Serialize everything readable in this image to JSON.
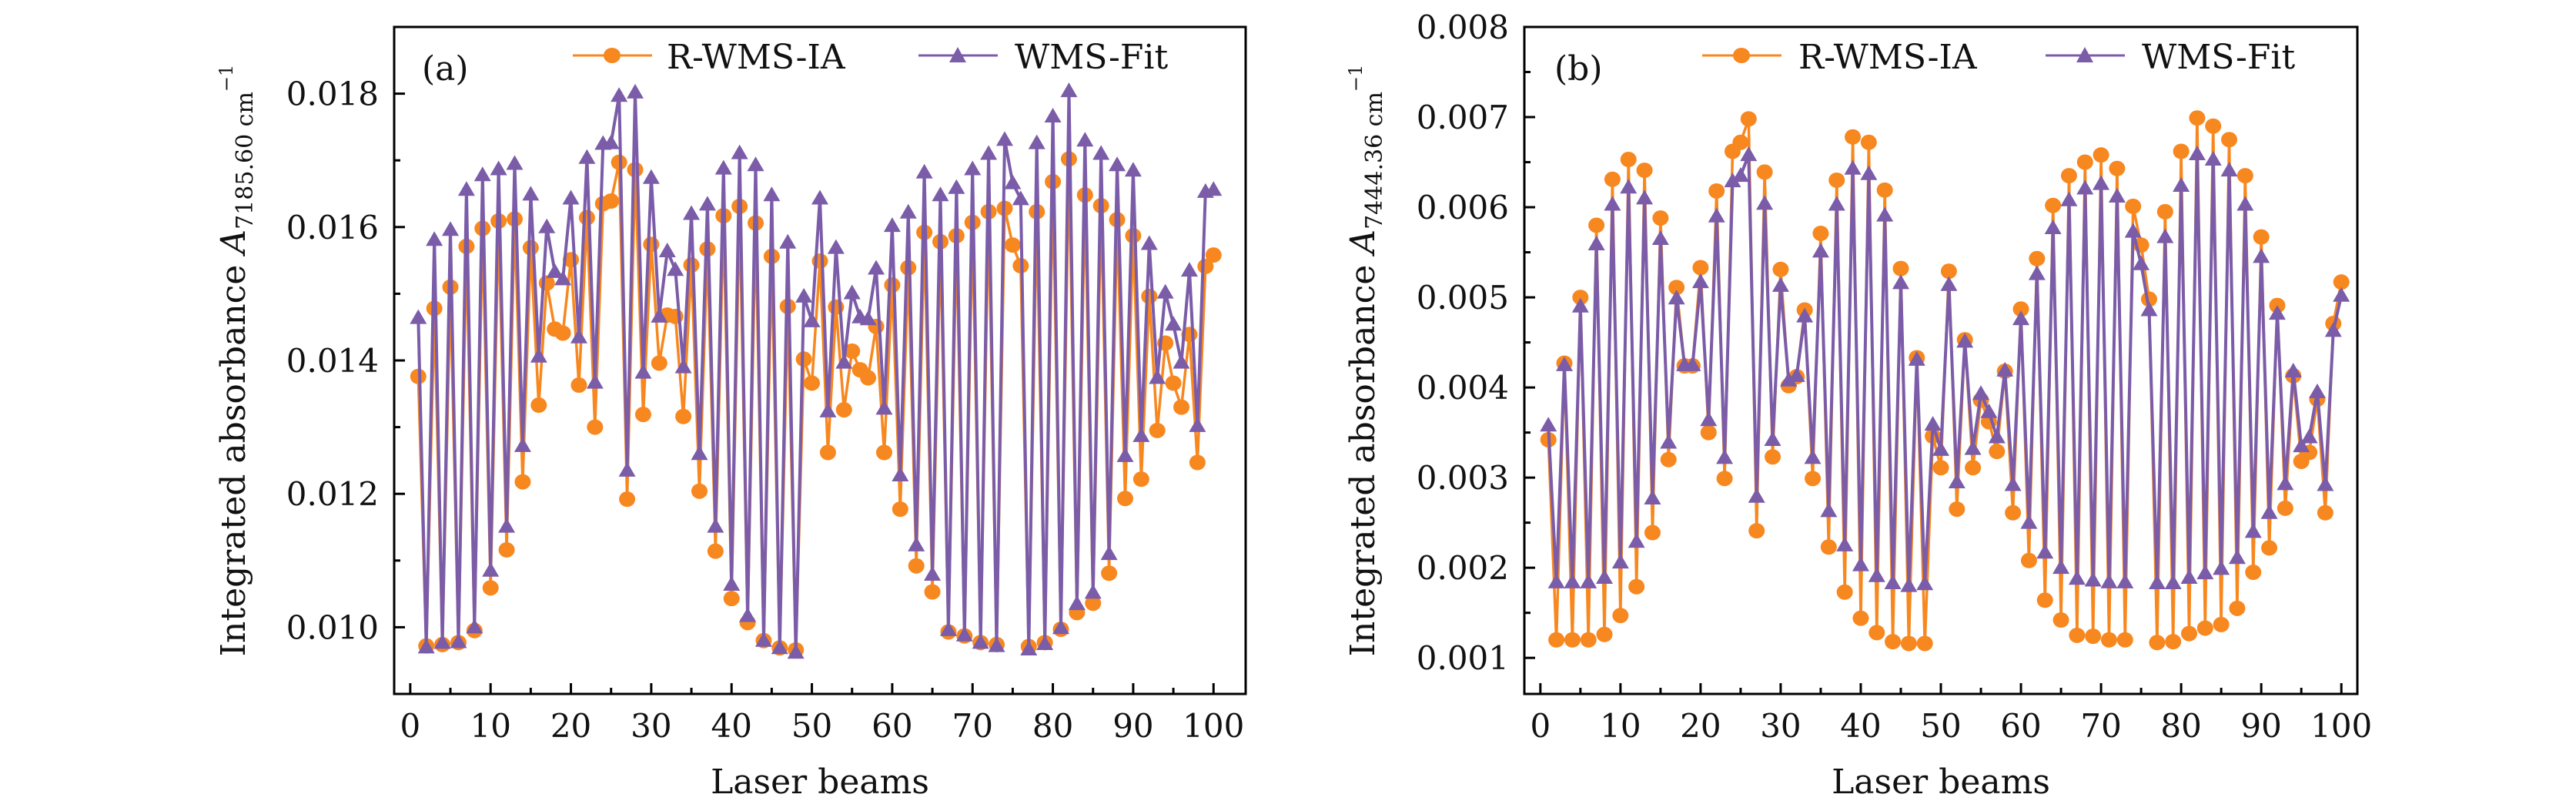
{
  "colors": {
    "r_wms_ia": "#F7871F",
    "wms_fit": "#7B5CA8",
    "axis": "#000000"
  },
  "chart_data": [
    {
      "type": "line",
      "panel_label": "(a)",
      "xlabel": "Laser beams",
      "ylabel": {
        "text": "Integrated absorbance ",
        "symbol": "A",
        "subscript": "7185.60 cm",
        "superscript": "−1"
      },
      "xlim": [
        -2,
        104
      ],
      "ylim": [
        0.009,
        0.019
      ],
      "xticks": [
        0,
        10,
        20,
        30,
        40,
        50,
        60,
        70,
        80,
        90,
        100
      ],
      "yticks": [
        0.01,
        0.012,
        0.014,
        0.016,
        0.018
      ],
      "ytick_labels": [
        "0.010",
        "0.012",
        "0.014",
        "0.016",
        "0.018"
      ],
      "grid": false,
      "legend_placement": "top",
      "x": [
        1,
        2,
        3,
        4,
        5,
        6,
        7,
        8,
        9,
        10,
        11,
        12,
        13,
        14,
        15,
        16,
        17,
        18,
        19,
        20,
        21,
        22,
        23,
        24,
        25,
        26,
        27,
        28,
        29,
        30,
        31,
        32,
        33,
        34,
        35,
        36,
        37,
        38,
        39,
        40,
        41,
        42,
        43,
        44,
        45,
        46,
        47,
        48,
        49,
        50,
        51,
        52,
        53,
        54,
        55,
        56,
        57,
        58,
        59,
        60,
        61,
        62,
        63,
        64,
        65,
        66,
        67,
        68,
        69,
        70,
        71,
        72,
        73,
        74,
        75,
        76,
        77,
        78,
        79,
        80,
        81,
        82,
        83,
        84,
        85,
        86,
        87,
        88,
        89,
        90,
        91,
        92,
        93,
        94,
        95,
        96,
        97,
        98,
        99,
        100
      ],
      "series": [
        {
          "name": "R-WMS-IA",
          "marker": "circle",
          "values": [
            0.01376,
            0.00972,
            0.01478,
            0.00974,
            0.0151,
            0.00977,
            0.01571,
            0.00995,
            0.01598,
            0.01059,
            0.01609,
            0.01116,
            0.01612,
            0.01218,
            0.01569,
            0.01333,
            0.01516,
            0.01447,
            0.01441,
            0.01551,
            0.01363,
            0.01614,
            0.013,
            0.01635,
            0.01639,
            0.01697,
            0.01192,
            0.01686,
            0.01319,
            0.01574,
            0.01396,
            0.01468,
            0.01466,
            0.01316,
            0.01543,
            0.01204,
            0.01567,
            0.01114,
            0.01617,
            0.01043,
            0.01631,
            0.01007,
            0.01606,
            0.0098,
            0.01556,
            0.00969,
            0.01481,
            0.00966,
            0.01402,
            0.01366,
            0.01549,
            0.01262,
            0.0148,
            0.01326,
            0.01414,
            0.01386,
            0.01374,
            0.01451,
            0.01262,
            0.01513,
            0.01177,
            0.01539,
            0.01092,
            0.01592,
            0.01053,
            0.01578,
            0.00993,
            0.01587,
            0.00987,
            0.01607,
            0.00977,
            0.01623,
            0.00974,
            0.01628,
            0.01573,
            0.01542,
            0.00971,
            0.01623,
            0.00977,
            0.01668,
            0.00997,
            0.01702,
            0.01022,
            0.01648,
            0.01036,
            0.01632,
            0.01081,
            0.01611,
            0.01193,
            0.01587,
            0.01222,
            0.01496,
            0.01295,
            0.01426,
            0.01366,
            0.0133,
            0.01439,
            0.01247,
            0.01541,
            0.01558
          ]
        },
        {
          "name": "WMS-Fit",
          "marker": "triangle",
          "values": [
            0.01464,
            0.0097,
            0.01581,
            0.00977,
            0.01596,
            0.00978,
            0.01656,
            0.01,
            0.01678,
            0.01085,
            0.01687,
            0.01151,
            0.01695,
            0.01272,
            0.01649,
            0.01406,
            0.016,
            0.01533,
            0.01522,
            0.01643,
            0.01435,
            0.01704,
            0.01367,
            0.01725,
            0.01726,
            0.01797,
            0.01235,
            0.01802,
            0.01382,
            0.01674,
            0.01466,
            0.01564,
            0.01536,
            0.0139,
            0.0162,
            0.0126,
            0.01634,
            0.01151,
            0.01688,
            0.01064,
            0.01711,
            0.01017,
            0.01693,
            0.0098,
            0.01648,
            0.00969,
            0.01577,
            0.00962,
            0.01496,
            0.01459,
            0.01643,
            0.01324,
            0.01569,
            0.01397,
            0.01501,
            0.01465,
            0.01462,
            0.01538,
            0.01328,
            0.01602,
            0.01228,
            0.01622,
            0.01123,
            0.01682,
            0.01079,
            0.01648,
            0.00996,
            0.01659,
            0.00988,
            0.01687,
            0.00977,
            0.0171,
            0.00972,
            0.01731,
            0.01666,
            0.01642,
            0.00967,
            0.01726,
            0.00975,
            0.01766,
            0.00999,
            0.01804,
            0.01035,
            0.0173,
            0.01052,
            0.0171,
            0.0111,
            0.01693,
            0.01257,
            0.01685,
            0.01287,
            0.01575,
            0.01374,
            0.01502,
            0.01454,
            0.01397,
            0.01535,
            0.01302,
            0.01653,
            0.01656
          ]
        }
      ]
    },
    {
      "type": "line",
      "panel_label": "(b)",
      "xlabel": "Laser beams",
      "ylabel": {
        "text": "Integrated absorbance ",
        "symbol": "A",
        "subscript": "7444.36 cm",
        "superscript": "−1"
      },
      "xlim": [
        -2,
        102
      ],
      "ylim": [
        0.0006,
        0.008
      ],
      "xticks": [
        0,
        10,
        20,
        30,
        40,
        50,
        60,
        70,
        80,
        90,
        100
      ],
      "yticks": [
        0.001,
        0.002,
        0.003,
        0.004,
        0.005,
        0.006,
        0.007,
        0.008
      ],
      "ytick_labels": [
        "0.001",
        "0.002",
        "0.003",
        "0.004",
        "0.005",
        "0.006",
        "0.007",
        "0.008"
      ],
      "grid": false,
      "legend_placement": "top",
      "x": [
        1,
        2,
        3,
        4,
        5,
        6,
        7,
        8,
        9,
        10,
        11,
        12,
        13,
        14,
        15,
        16,
        17,
        18,
        19,
        20,
        21,
        22,
        23,
        24,
        25,
        26,
        27,
        28,
        29,
        30,
        31,
        32,
        33,
        34,
        35,
        36,
        37,
        38,
        39,
        40,
        41,
        42,
        43,
        44,
        45,
        46,
        47,
        48,
        49,
        50,
        51,
        52,
        53,
        54,
        55,
        56,
        57,
        58,
        59,
        60,
        61,
        62,
        63,
        64,
        65,
        66,
        67,
        68,
        69,
        70,
        71,
        72,
        73,
        74,
        75,
        76,
        77,
        78,
        79,
        80,
        81,
        82,
        83,
        84,
        85,
        86,
        87,
        88,
        89,
        90,
        91,
        92,
        93,
        94,
        95,
        96,
        97,
        98,
        99,
        100
      ],
      "series": [
        {
          "name": "R-WMS-IA",
          "marker": "circle",
          "values": [
            0.00342,
            0.0012,
            0.00427,
            0.0012,
            0.005,
            0.0012,
            0.0058,
            0.00126,
            0.00631,
            0.00147,
            0.00653,
            0.00179,
            0.00641,
            0.00239,
            0.00588,
            0.0032,
            0.00511,
            0.00424,
            0.00424,
            0.00533,
            0.0035,
            0.00618,
            0.00299,
            0.00662,
            0.00672,
            0.00698,
            0.00241,
            0.00639,
            0.00323,
            0.00531,
            0.00402,
            0.00412,
            0.00486,
            0.00299,
            0.00571,
            0.00223,
            0.0063,
            0.00173,
            0.00678,
            0.00144,
            0.00672,
            0.00128,
            0.00619,
            0.00118,
            0.00532,
            0.00116,
            0.00433,
            0.00116,
            0.00346,
            0.00311,
            0.00529,
            0.00265,
            0.00453,
            0.00311,
            0.00386,
            0.00362,
            0.00329,
            0.00418,
            0.00261,
            0.00487,
            0.00208,
            0.00543,
            0.00164,
            0.00602,
            0.00142,
            0.00635,
            0.00125,
            0.0065,
            0.00124,
            0.00658,
            0.0012,
            0.00643,
            0.0012,
            0.00601,
            0.00558,
            0.00498,
            0.00117,
            0.00595,
            0.00118,
            0.00662,
            0.00127,
            0.00699,
            0.00133,
            0.0069,
            0.00137,
            0.00675,
            0.00155,
            0.00635,
            0.00195,
            0.00567,
            0.00222,
            0.00491,
            0.00266,
            0.00413,
            0.00318,
            0.00328,
            0.00387,
            0.00261,
            0.00471,
            0.00517
          ]
        },
        {
          "name": "WMS-Fit",
          "marker": "triangle",
          "values": [
            0.00358,
            0.00184,
            0.00425,
            0.00184,
            0.0049,
            0.00184,
            0.00559,
            0.00189,
            0.00603,
            0.00206,
            0.00622,
            0.00229,
            0.0061,
            0.00277,
            0.00565,
            0.00339,
            0.00499,
            0.00425,
            0.00425,
            0.00517,
            0.00364,
            0.0059,
            0.00322,
            0.00629,
            0.00635,
            0.00658,
            0.00279,
            0.00604,
            0.00342,
            0.00513,
            0.00408,
            0.00413,
            0.00479,
            0.00322,
            0.00551,
            0.00263,
            0.00603,
            0.00225,
            0.00643,
            0.00203,
            0.00637,
            0.00191,
            0.00591,
            0.00183,
            0.00516,
            0.0018,
            0.00431,
            0.00182,
            0.00359,
            0.00331,
            0.00514,
            0.00295,
            0.00451,
            0.00332,
            0.00393,
            0.00373,
            0.00345,
            0.00419,
            0.00292,
            0.00476,
            0.0025,
            0.00526,
            0.00217,
            0.00577,
            0.002,
            0.00608,
            0.00188,
            0.00621,
            0.00186,
            0.00626,
            0.00184,
            0.00612,
            0.00184,
            0.00573,
            0.00537,
            0.00486,
            0.00183,
            0.00567,
            0.00183,
            0.00624,
            0.00189,
            0.00659,
            0.00194,
            0.00653,
            0.00199,
            0.00641,
            0.00211,
            0.00603,
            0.0024,
            0.00545,
            0.00261,
            0.00482,
            0.00293,
            0.00418,
            0.00335,
            0.00345,
            0.00395,
            0.00292,
            0.00463,
            0.00502
          ]
        }
      ]
    }
  ]
}
